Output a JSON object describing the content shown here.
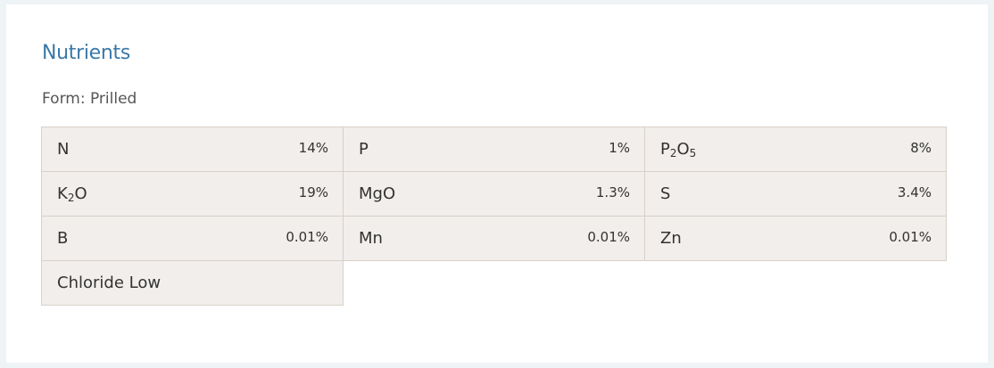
{
  "title": "Nutrients",
  "form": "Form: Prilled",
  "nutrients": [
    {
      "label": "N",
      "sub": [],
      "value": "14%"
    },
    {
      "label": "P",
      "sub": [],
      "value": "1%"
    },
    {
      "label": "P",
      "sub": [
        "2",
        "O",
        "5"
      ],
      "value": "8%"
    },
    {
      "label": "K",
      "sub": [
        "2",
        "O"
      ],
      "value": "19%"
    },
    {
      "label": "MgO",
      "sub": [],
      "value": "1.3%"
    },
    {
      "label": "S",
      "sub": [],
      "value": "3.4%"
    },
    {
      "label": "B",
      "sub": [],
      "value": "0.01%"
    },
    {
      "label": "Mn",
      "sub": [],
      "value": "0.01%"
    },
    {
      "label": "Zn",
      "sub": [],
      "value": "0.01%"
    },
    {
      "label": "Chloride Low",
      "sub": [],
      "value": ""
    }
  ]
}
